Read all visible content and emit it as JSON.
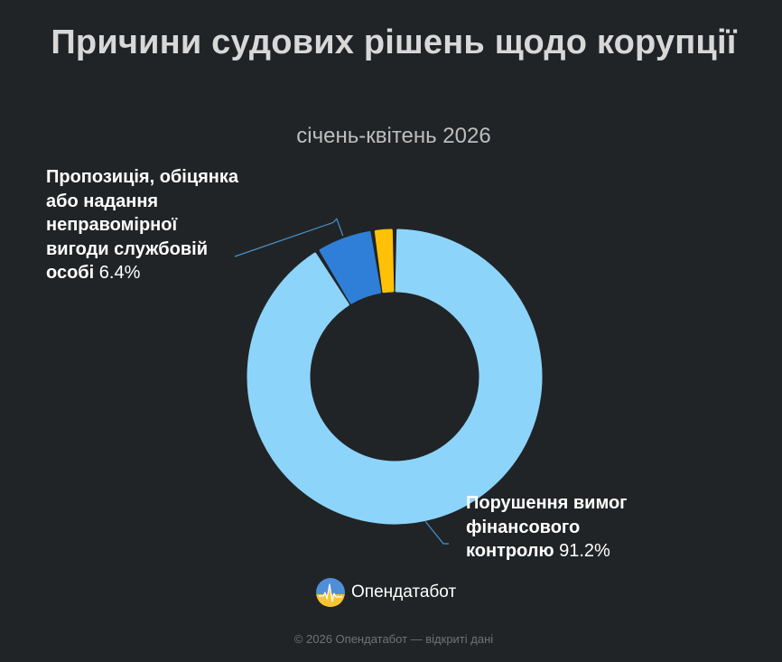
{
  "title": "Причини судових рішень щодо корупції",
  "subtitle": "січень-квітень 2026",
  "brand": {
    "name": "Опендатабот",
    "icon": "opendatabot-logo-icon"
  },
  "footer": "© 2026 Опендатабот — відкриті дані",
  "colors": {
    "background": "#212426",
    "large_slice": "#8dd4fb",
    "medium_slice": "#2f7fd8",
    "small_slice": "#ffc107",
    "leader_line": "#4a90c8"
  },
  "chart_data": {
    "type": "pie",
    "donut": true,
    "title": "Причини судових рішень щодо корупції",
    "subtitle": "січень-квітень 2026",
    "slices": [
      {
        "name": "Порушення вимог фінансового контролю",
        "value": 91.2,
        "percent_label": "91.2%",
        "color": "#8dd4fb"
      },
      {
        "name": "Пропозиція, обіцянка або надання неправомірної вигоди службовій особі",
        "value": 6.4,
        "percent_label": "6.4%",
        "color": "#2f7fd8"
      },
      {
        "name": "",
        "value": 2.4,
        "percent_label": "",
        "color": "#ffc107"
      }
    ],
    "legend": "none"
  }
}
